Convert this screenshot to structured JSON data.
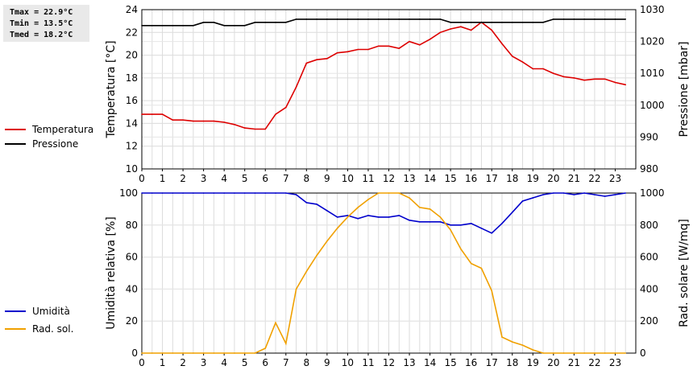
{
  "stats": {
    "tmax": "Tmax = 22.9°C",
    "tmin": "Tmin = 13.5°C",
    "tmed": "Tmed = 18.2°C"
  },
  "legend": {
    "temperature": {
      "label": "Temperatura",
      "color": "#dd0000"
    },
    "pressure": {
      "label": "Pressione",
      "color": "#000000"
    },
    "humidity": {
      "label": "Umidità",
      "color": "#0000cc"
    },
    "radiation": {
      "label": "Rad. sol.",
      "color": "#f0a000"
    }
  },
  "chart_data": [
    {
      "type": "line",
      "xlabel": "",
      "x_ticks": [
        "0",
        "1",
        "2",
        "3",
        "4",
        "5",
        "6",
        "7",
        "8",
        "9",
        "10",
        "11",
        "12",
        "13",
        "14",
        "15",
        "16",
        "17",
        "18",
        "19",
        "20",
        "21",
        "22",
        "23"
      ],
      "xlim": [
        0,
        24
      ],
      "ylabel_left": "Temperatura [°C]",
      "ylabel_right": "Pressione [mbar]",
      "ylim_left": [
        10,
        24
      ],
      "ylim_right": [
        980,
        1030
      ],
      "y_ticks_left": [
        "10",
        "12",
        "14",
        "16",
        "18",
        "20",
        "22",
        "24"
      ],
      "y_ticks_right": [
        "980",
        "990",
        "1000",
        "1010",
        "1020",
        "1030"
      ],
      "grid": true,
      "series": [
        {
          "name": "Temperatura",
          "axis": "left",
          "color": "#dd0000",
          "x": [
            0,
            0.5,
            1,
            1.5,
            2,
            2.5,
            3,
            3.5,
            4,
            4.5,
            5,
            5.5,
            6,
            6.5,
            7,
            7.5,
            8,
            8.5,
            9,
            9.5,
            10,
            10.5,
            11,
            11.5,
            12,
            12.5,
            13,
            13.5,
            14,
            14.5,
            15,
            15.5,
            16,
            16.5,
            17,
            17.5,
            18,
            18.5,
            19,
            19.5,
            20,
            20.5,
            21,
            21.5,
            22,
            22.5,
            23,
            23.5
          ],
          "y": [
            14.8,
            14.8,
            14.8,
            14.3,
            14.3,
            14.2,
            14.2,
            14.2,
            14.1,
            13.9,
            13.6,
            13.5,
            13.5,
            14.8,
            15.4,
            17.2,
            19.3,
            19.6,
            19.7,
            20.2,
            20.3,
            20.5,
            20.5,
            20.8,
            20.8,
            20.6,
            21.2,
            20.9,
            21.4,
            22.0,
            22.3,
            22.5,
            22.2,
            22.9,
            22.2,
            21.0,
            19.9,
            19.4,
            18.8,
            18.8,
            18.4,
            18.1,
            18.0,
            17.8,
            17.9,
            17.9,
            17.6,
            17.4
          ]
        },
        {
          "name": "Pressione",
          "axis": "right",
          "color": "#000000",
          "x": [
            0,
            0.5,
            1,
            1.5,
            2,
            2.5,
            3,
            3.5,
            4,
            4.5,
            5,
            5.5,
            6,
            6.5,
            7,
            7.5,
            8,
            8.5,
            9,
            9.5,
            10,
            10.5,
            11,
            11.5,
            12,
            12.5,
            13,
            13.5,
            14,
            14.5,
            15,
            15.5,
            16,
            16.5,
            17,
            17.5,
            18,
            18.5,
            19,
            19.5,
            20,
            20.5,
            21,
            21.5,
            22,
            22.5,
            23,
            23.5
          ],
          "y": [
            1025,
            1025,
            1025,
            1025,
            1025,
            1025,
            1026,
            1026,
            1025,
            1025,
            1025,
            1026,
            1026,
            1026,
            1026,
            1027,
            1027,
            1027,
            1027,
            1027,
            1027,
            1027,
            1027,
            1027,
            1027,
            1027,
            1027,
            1027,
            1027,
            1027,
            1026,
            1026,
            1026,
            1026,
            1026,
            1026,
            1026,
            1026,
            1026,
            1026,
            1027,
            1027,
            1027,
            1027,
            1027,
            1027,
            1027,
            1027
          ]
        }
      ]
    },
    {
      "type": "line",
      "xlabel": "",
      "x_ticks": [
        "0",
        "1",
        "2",
        "3",
        "4",
        "5",
        "6",
        "7",
        "8",
        "9",
        "10",
        "11",
        "12",
        "13",
        "14",
        "15",
        "16",
        "17",
        "18",
        "19",
        "20",
        "21",
        "22",
        "23"
      ],
      "xlim": [
        0,
        24
      ],
      "ylabel_left": "Umidità relativa [%]",
      "ylabel_right": "Rad. solare [W/mq]",
      "ylim_left": [
        0,
        100
      ],
      "ylim_right": [
        0,
        1000
      ],
      "y_ticks_left": [
        "0",
        "20",
        "40",
        "60",
        "80",
        "100"
      ],
      "y_ticks_right": [
        "0",
        "200",
        "400",
        "600",
        "800",
        "1000"
      ],
      "grid": true,
      "series": [
        {
          "name": "Umidità",
          "axis": "left",
          "color": "#0000cc",
          "x": [
            0,
            0.5,
            1,
            1.5,
            2,
            2.5,
            3,
            3.5,
            4,
            4.5,
            5,
            5.5,
            6,
            6.5,
            7,
            7.5,
            8,
            8.5,
            9,
            9.5,
            10,
            10.5,
            11,
            11.5,
            12,
            12.5,
            13,
            13.5,
            14,
            14.5,
            15,
            15.5,
            16,
            16.5,
            17,
            17.5,
            18,
            18.5,
            19,
            19.5,
            20,
            20.5,
            21,
            21.5,
            22,
            22.5,
            23,
            23.5
          ],
          "y": [
            100,
            100,
            100,
            100,
            100,
            100,
            100,
            100,
            100,
            100,
            100,
            100,
            100,
            100,
            100,
            99,
            94,
            93,
            89,
            85,
            86,
            84,
            86,
            85,
            85,
            86,
            83,
            82,
            82,
            82,
            80,
            80,
            81,
            78,
            75,
            81,
            88,
            95,
            97,
            99,
            100,
            100,
            99,
            100,
            99,
            98,
            99,
            100
          ]
        },
        {
          "name": "Rad. sol.",
          "axis": "right",
          "color": "#f0a000",
          "x": [
            0,
            0.5,
            1,
            1.5,
            2,
            2.5,
            3,
            3.5,
            4,
            4.5,
            5,
            5.5,
            6,
            6.5,
            7,
            7.5,
            8,
            8.5,
            9,
            9.5,
            10,
            10.5,
            11,
            11.5,
            12,
            12.5,
            13,
            13.5,
            14,
            14.5,
            15,
            15.5,
            16,
            16.5,
            17,
            17.5,
            18,
            18.5,
            19,
            19.5,
            20,
            20.5,
            21,
            21.5,
            22,
            22.5,
            23,
            23.5
          ],
          "y": [
            0,
            0,
            0,
            0,
            0,
            0,
            0,
            0,
            0,
            0,
            0,
            0,
            30,
            190,
            60,
            400,
            510,
            610,
            700,
            780,
            850,
            910,
            960,
            1000,
            1000,
            1000,
            970,
            910,
            900,
            850,
            770,
            650,
            560,
            530,
            390,
            100,
            70,
            50,
            20,
            0,
            0,
            0,
            0,
            0,
            0,
            0,
            0,
            0
          ]
        }
      ]
    }
  ]
}
